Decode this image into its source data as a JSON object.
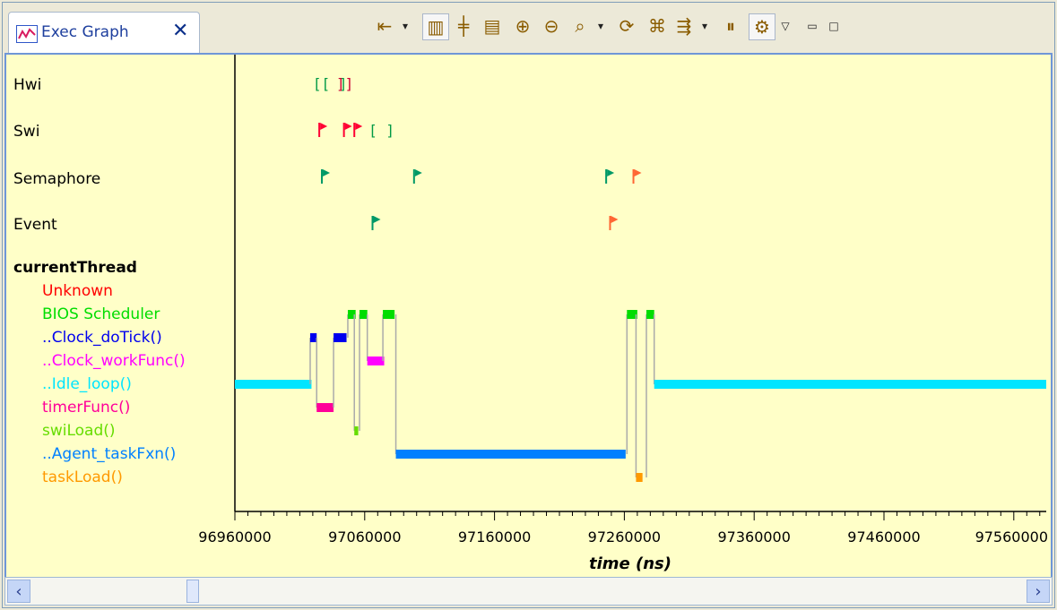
{
  "tab": {
    "title": "Exec Graph",
    "close": "✕"
  },
  "toolbar": {
    "icons": [
      "align-left-icon",
      "chevron-down-icon",
      "layout-icon",
      "merge-icon",
      "measure-icon",
      "zoom-in-icon",
      "zoom-out-icon",
      "zoom-fit-icon",
      "chevron-down-icon",
      "refresh-icon",
      "find-icon",
      "group-icon",
      "chevron-down-icon",
      "pause-icon",
      "settings-icon",
      "menu-icon",
      "minimize-icon",
      "maximize-icon"
    ]
  },
  "rows": {
    "hwi": "Hwi",
    "swi": "Swi",
    "semaphore": "Semaphore",
    "event": "Event",
    "currentThread": "currentThread"
  },
  "threads": [
    {
      "label": "Unknown",
      "color": "#ff0000"
    },
    {
      "label": "BIOS Scheduler",
      "color": "#00dd00"
    },
    {
      "label": "..Clock_doTick()",
      "color": "#0000ee"
    },
    {
      "label": "..Clock_workFunc()",
      "color": "#ff00ff"
    },
    {
      "label": "..Idle_loop()",
      "color": "#00e5ff"
    },
    {
      "label": "timerFunc()",
      "color": "#ff0099"
    },
    {
      "label": "swiLoad()",
      "color": "#66dd00"
    },
    {
      "label": "..Agent_taskFxn()",
      "color": "#0080ff"
    },
    {
      "label": "taskLoad()",
      "color": "#ff9900"
    }
  ],
  "chart_data": {
    "type": "timeline",
    "xlabel": "time (ns)",
    "xlim": [
      96960000,
      97585000
    ],
    "ticks": [
      96960000,
      97060000,
      97160000,
      97260000,
      97360000,
      97460000,
      97560000
    ],
    "tick_labels": [
      "96960000",
      "97060000",
      "97160000",
      "97260000",
      "97360000",
      "97460000",
      "97560000"
    ],
    "markers": {
      "hwi": [
        {
          "t": 97020000,
          "kind": "bracket",
          "color": "#009944",
          "text": "[[ ]"
        },
        {
          "t": 97038000,
          "kind": "bracket",
          "color": "#cc0033",
          "text": "]]"
        }
      ],
      "swi": [
        {
          "t": 97025000,
          "kind": "flag",
          "color": "#ff0033"
        },
        {
          "t": 97044000,
          "kind": "flag",
          "color": "#ff0033"
        },
        {
          "t": 97052000,
          "kind": "flag",
          "color": "#ff0033"
        },
        {
          "t": 97063000,
          "kind": "bracket",
          "color": "#009944",
          "text": "[ ]"
        }
      ],
      "semaphore": [
        {
          "t": 97027000,
          "kind": "flag",
          "color": "#009966"
        },
        {
          "t": 97098000,
          "kind": "flag",
          "color": "#009966"
        },
        {
          "t": 97246000,
          "kind": "flag",
          "color": "#009966"
        },
        {
          "t": 97267000,
          "kind": "flag",
          "color": "#ff6633"
        }
      ],
      "event": [
        {
          "t": 97066000,
          "kind": "flag",
          "color": "#009966"
        },
        {
          "t": 97249000,
          "kind": "flag",
          "color": "#ff6633"
        }
      ]
    },
    "segments": [
      {
        "thread": 4,
        "t0": 96960000,
        "t1": 97019000
      },
      {
        "thread": 2,
        "t0": 97018000,
        "t1": 97023000
      },
      {
        "thread": 5,
        "t0": 97023000,
        "t1": 97036000
      },
      {
        "thread": 2,
        "t0": 97036000,
        "t1": 97046000
      },
      {
        "thread": 1,
        "t0": 97047000,
        "t1": 97053000
      },
      {
        "thread": 6,
        "t0": 97052000,
        "t1": 97055000
      },
      {
        "thread": 1,
        "t0": 97056000,
        "t1": 97062000
      },
      {
        "thread": 3,
        "t0": 97062000,
        "t1": 97075000
      },
      {
        "thread": 1,
        "t0": 97074000,
        "t1": 97083000
      },
      {
        "thread": 7,
        "t0": 97084000,
        "t1": 97261000
      },
      {
        "thread": 1,
        "t0": 97262000,
        "t1": 97270000
      },
      {
        "thread": 8,
        "t0": 97269000,
        "t1": 97274000
      },
      {
        "thread": 1,
        "t0": 97277000,
        "t1": 97283000
      },
      {
        "thread": 4,
        "t0": 97283000,
        "t1": 97585000
      }
    ]
  }
}
